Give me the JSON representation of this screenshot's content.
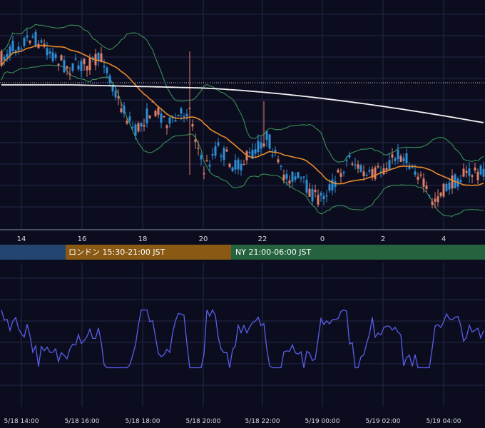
{
  "chart_data": [
    {
      "type": "candlestick",
      "x_ticks_hour_labels": [
        "14",
        "16",
        "18",
        "20",
        "22",
        "0",
        "2",
        "4"
      ],
      "overlays": [
        {
          "name": "moving-average-short",
          "color": "#e8892c"
        },
        {
          "name": "moving-average-long",
          "color": "#f2f2f2"
        },
        {
          "name": "bollinger-bands",
          "color": "#3e9a5a"
        }
      ],
      "dotted_reference_line": true,
      "candle_colors": {
        "up": "#2e8fd6",
        "down": "#e0806a"
      }
    },
    {
      "type": "line",
      "series_color": "#5a5ee8",
      "x_tick_labels": [
        "5/18 14:00",
        "5/18 16:00",
        "5/18 18:00",
        "5/18 20:00",
        "5/18 22:00",
        "5/19 00:00",
        "5/19 02:00",
        "5/19 04:00"
      ]
    }
  ],
  "sessions": [
    {
      "label": "",
      "color": "#23456f"
    },
    {
      "label": "ロンドン 15:30-21:00 JST",
      "color": "#8a5a14"
    },
    {
      "label": "NY 21:00-06:00 JST",
      "color": "#24633e"
    }
  ],
  "colors": {
    "background": "#0b0d1f",
    "grid": "#232846"
  }
}
